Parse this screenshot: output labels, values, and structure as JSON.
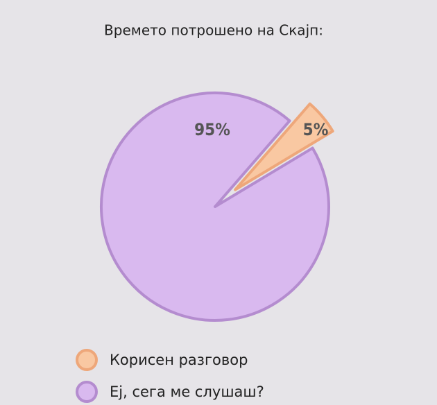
{
  "chart_data": {
    "type": "pie",
    "title": "Времето потрошено на Скајп:",
    "categories": [
      "Корисен разговор",
      "Ej, сега ме слушаш?"
    ],
    "values": [
      5,
      95
    ],
    "value_labels": [
      "5%",
      "95%"
    ],
    "colors": [
      "#f9c8a2",
      "#d9b9ef"
    ],
    "stroke_colors": [
      "#eea77a",
      "#b48ccf"
    ]
  }
}
